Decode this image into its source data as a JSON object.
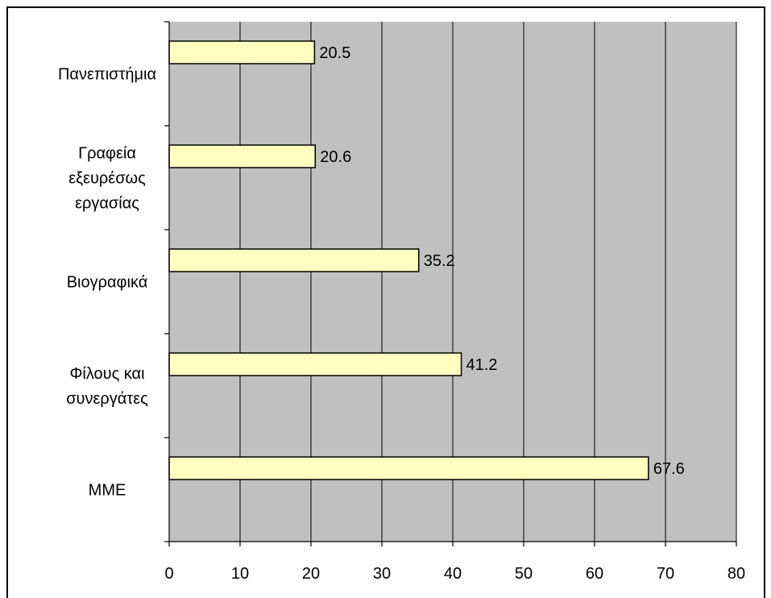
{
  "chart_data": {
    "type": "bar",
    "orientation": "horizontal",
    "categories": [
      "Πανεπιστήμια",
      "Γραφεία εξευρέσως εργασίας",
      "Βιογραφικά",
      "Φίλους και συνεργάτες",
      "ΜΜΕ"
    ],
    "category_label_lines": [
      [
        "Πανεπιστήμια"
      ],
      [
        "Γραφεία",
        "εξευρέσως",
        "εργασίας"
      ],
      [
        "Βιογραφικά"
      ],
      [
        "Φίλους και",
        "συνεργάτες"
      ],
      [
        "ΜΜΕ"
      ]
    ],
    "values": [
      20.5,
      20.6,
      35.2,
      41.2,
      67.6
    ],
    "data_labels": [
      "20.5",
      "20.6",
      "35.2",
      "41.2",
      "67.6"
    ],
    "xlim": [
      0,
      80
    ],
    "x_ticks": [
      0,
      10,
      20,
      30,
      40,
      50,
      60,
      70,
      80
    ],
    "x_tick_labels": [
      "0",
      "10",
      "20",
      "30",
      "40",
      "50",
      "60",
      "70",
      "80"
    ],
    "grid": true,
    "legend": "none",
    "colors": {
      "bar_fill": "#ffffc0",
      "bar_stroke": "#000000",
      "plot_background": "#c0c0c0",
      "gridline": "#000000"
    }
  }
}
